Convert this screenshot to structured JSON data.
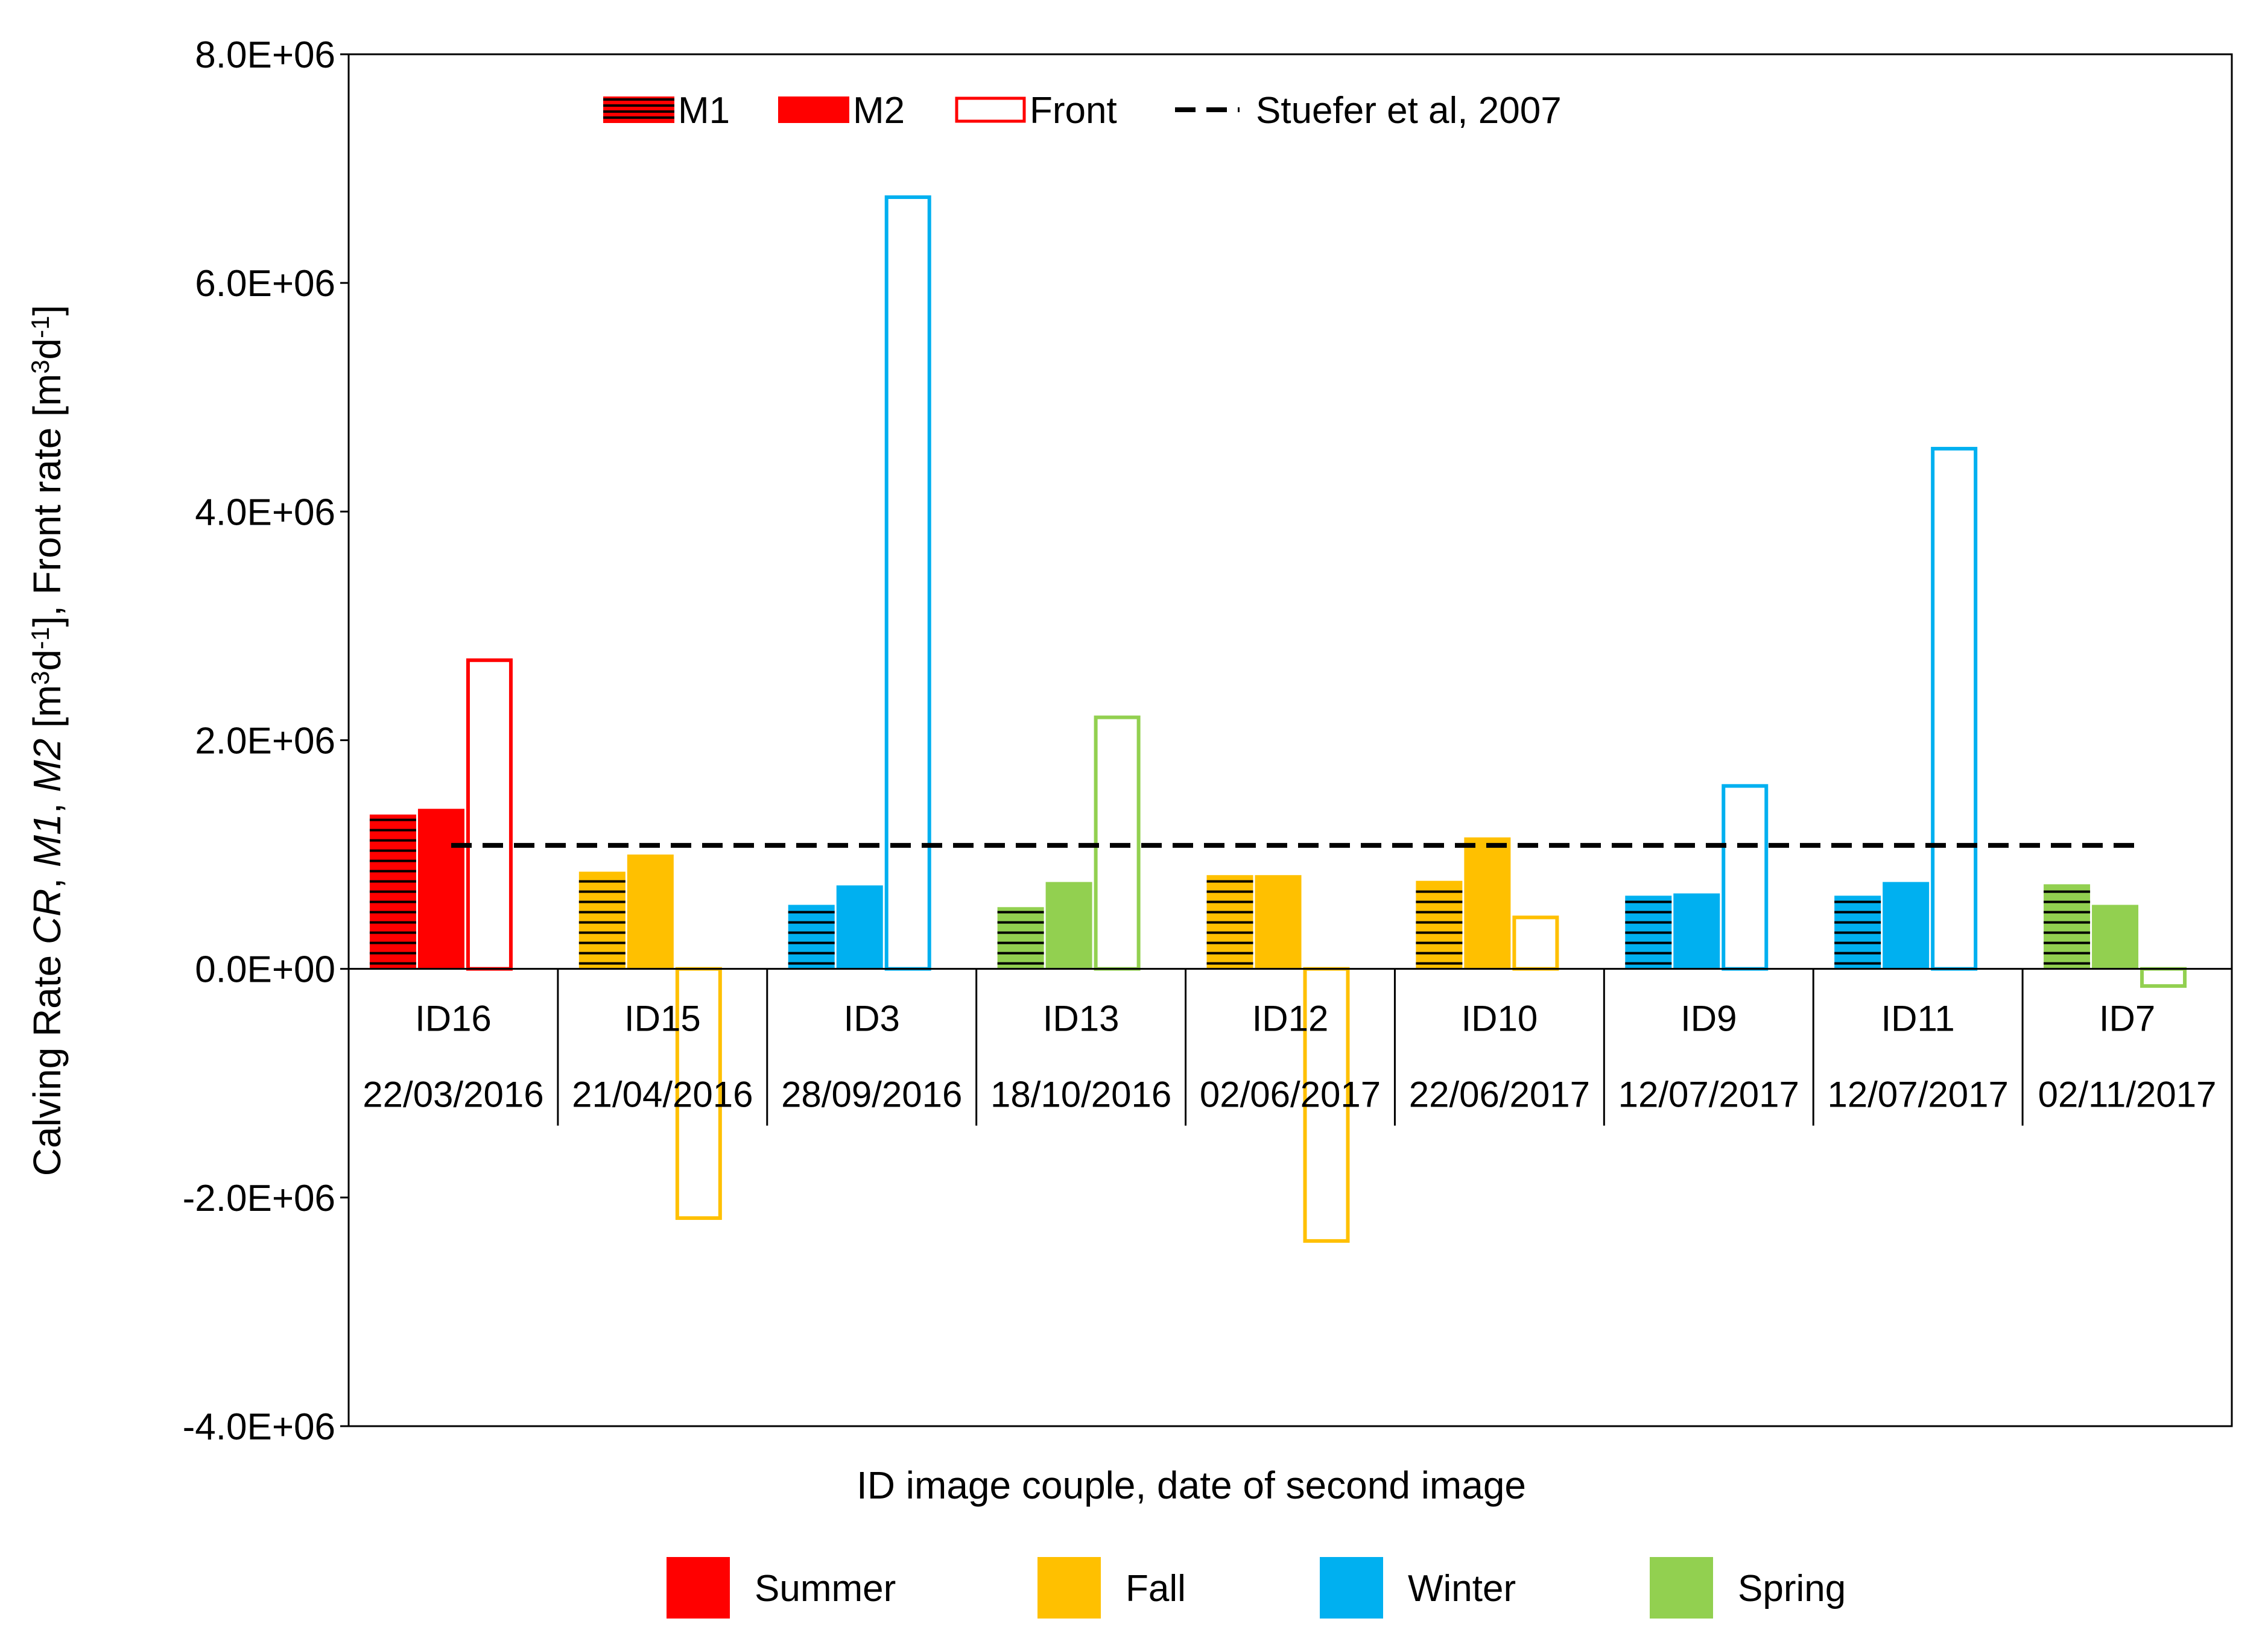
{
  "chart_data": {
    "type": "bar",
    "title": "",
    "xlabel": "ID image couple, date of second image",
    "ylabel": {
      "parts": [
        {
          "t": "Calving Rate ",
          "style": "normal"
        },
        {
          "t": "CR",
          "style": "italic"
        },
        {
          "t": ", ",
          "style": "normal"
        },
        {
          "t": "M1",
          "style": "italic"
        },
        {
          "t": ", ",
          "style": "normal"
        },
        {
          "t": "M2",
          "style": "italic"
        },
        {
          "t": " [m",
          "style": "normal"
        },
        {
          "t": "3",
          "style": "sup"
        },
        {
          "t": "d",
          "style": "normal"
        },
        {
          "t": "-1",
          "style": "sup"
        },
        {
          "t": "],  Front rate [m",
          "style": "normal"
        },
        {
          "t": "3",
          "style": "sup"
        },
        {
          "t": "d",
          "style": "normal"
        },
        {
          "t": "-1",
          "style": "sup"
        },
        {
          "t": "]",
          "style": "normal"
        }
      ]
    },
    "ylim": [
      -4000000,
      8000000
    ],
    "yticks": [
      -4000000,
      -2000000,
      0,
      2000000,
      4000000,
      6000000,
      8000000
    ],
    "ytick_labels": [
      "-4.0E+06",
      "-2.0E+06",
      "0.0E+00",
      "2.0E+06",
      "4.0E+06",
      "6.0E+06",
      "8.0E+06"
    ],
    "categories": [
      {
        "id": "ID16",
        "date": "22/03/2016",
        "season": "Summer"
      },
      {
        "id": "ID15",
        "date": "21/04/2016",
        "season": "Fall"
      },
      {
        "id": "ID3",
        "date": "28/09/2016",
        "season": "Winter"
      },
      {
        "id": "ID13",
        "date": "18/10/2016",
        "season": "Spring"
      },
      {
        "id": "ID12",
        "date": "02/06/2017",
        "season": "Fall"
      },
      {
        "id": "ID10",
        "date": "22/06/2017",
        "season": "Fall"
      },
      {
        "id": "ID9",
        "date": "12/07/2017",
        "season": "Winter"
      },
      {
        "id": "ID11",
        "date": "12/07/2017",
        "season": "Winter"
      },
      {
        "id": "ID7",
        "date": "02/11/2017",
        "season": "Spring"
      }
    ],
    "series": [
      {
        "name": "M1",
        "style": "hatched",
        "values": [
          1350000,
          850000,
          560000,
          540000,
          820000,
          770000,
          640000,
          640000,
          740000
        ]
      },
      {
        "name": "M2",
        "style": "filled",
        "values": [
          1400000,
          1000000,
          730000,
          760000,
          820000,
          1150000,
          660000,
          760000,
          560000
        ]
      },
      {
        "name": "Front",
        "style": "outline",
        "values": [
          2700000,
          -2180000,
          6750000,
          2200000,
          -2380000,
          450000,
          1600000,
          4550000,
          -150000
        ]
      }
    ],
    "reference_line": {
      "name": "Stuefer et al, 2007",
      "value": 1080000,
      "style": "dashed"
    },
    "season_legend": [
      {
        "name": "Summer",
        "color": "#ff0000"
      },
      {
        "name": "Fall",
        "color": "#ffc000"
      },
      {
        "name": "Winter",
        "color": "#00b0f0"
      },
      {
        "name": "Spring",
        "color": "#92d050"
      }
    ],
    "legend_position": "top-inside",
    "grid": false
  }
}
